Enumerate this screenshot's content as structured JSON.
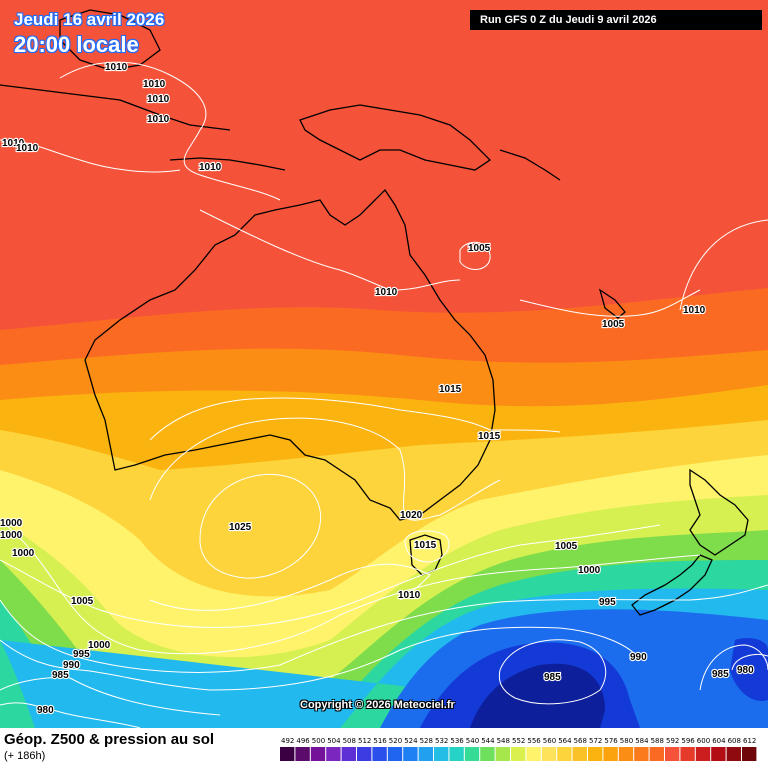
{
  "header": {
    "date": "Jeudi 16 avril 2026",
    "time": "20:00 locale",
    "run": "Run GFS 0 Z du Jeudi 9 avril 2026"
  },
  "footer": {
    "title": "Géop. Z500 & pression au sol",
    "subtitle": "(+ 186h)",
    "copyright": "Copyright © 2026 Meteociel.fr"
  },
  "colors": {
    "band_592": "#f4533a",
    "band_584": "#fb6a22",
    "band_576": "#fb8c14",
    "band_568": "#fbb40f",
    "band_560": "#fdd43c",
    "band_552": "#fff36b",
    "band_544": "#d6f052",
    "band_536": "#7fdc4a",
    "band_528": "#2cd8a0",
    "band_520": "#22b9ee",
    "band_512": "#1b6dee",
    "band_504": "#1339d6",
    "band_496": "#0d1f9a",
    "isobar": "#ffffff",
    "coastline": "#000000"
  },
  "legend_scale": {
    "ticks": [
      "492",
      "496",
      "500",
      "504",
      "508",
      "512",
      "516",
      "520",
      "524",
      "528",
      "532",
      "536",
      "540",
      "544",
      "548",
      "552",
      "556",
      "560",
      "564",
      "568",
      "572",
      "576",
      "580",
      "584",
      "588",
      "592",
      "596",
      "600",
      "604",
      "608",
      "612"
    ],
    "colors": [
      "#3b0041",
      "#5a0b6c",
      "#74139a",
      "#7c26c0",
      "#5e2fd4",
      "#3b3ce2",
      "#2a4fea",
      "#1f65ef",
      "#1e80f2",
      "#21a0f0",
      "#23bde6",
      "#27d2c6",
      "#36dc96",
      "#6ee05e",
      "#a6e84c",
      "#d9f04e",
      "#fff36b",
      "#ffe25b",
      "#fdd43c",
      "#fbc227",
      "#fbb40f",
      "#fba20f",
      "#fb8c14",
      "#fb7a1c",
      "#fb6a22",
      "#f4533a",
      "#e63b2b",
      "#cc1e1e",
      "#b20d14",
      "#8f0a0f",
      "#6e060a"
    ]
  },
  "isobar_labels": [
    "1010",
    "1010",
    "1010",
    "1010",
    "1010",
    "1010",
    "1010",
    "1005",
    "1010",
    "1005",
    "1010",
    "1015",
    "1015",
    "1025",
    "1020",
    "1015",
    "1005",
    "1000",
    "995",
    "1010",
    "1000",
    "1000",
    "1000",
    "1005",
    "1000",
    "995",
    "990",
    "985",
    "980",
    "985",
    "990",
    "985",
    "980"
  ]
}
